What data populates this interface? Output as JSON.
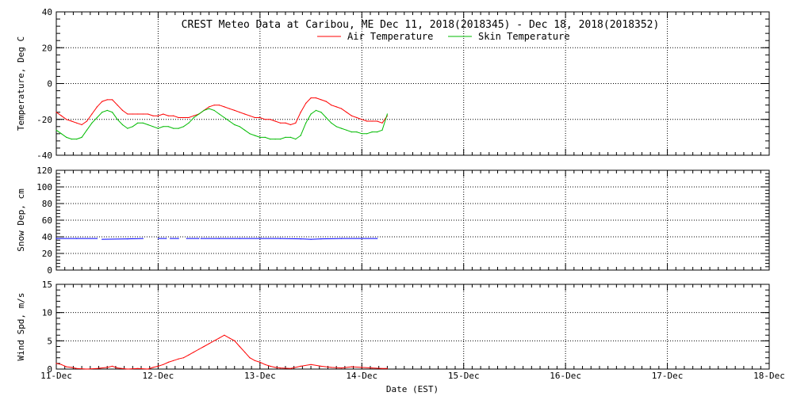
{
  "chart_data": {
    "type": "line",
    "title": "CREST Meteo Data at Caribou, ME   Dec 11, 2018(2018345) - Dec 18, 2018(2018352)",
    "x_label": "Date (EST)",
    "x_ticks": [
      "11-Dec",
      "12-Dec",
      "13-Dec",
      "14-Dec",
      "15-Dec",
      "16-Dec",
      "17-Dec",
      "18-Dec"
    ],
    "x_range": [
      0,
      7
    ],
    "x_unit": "days since 11-Dec",
    "panels": [
      {
        "name": "temperature",
        "ylabel": "Temperature, Deg C",
        "ylim": [
          -40,
          40
        ],
        "yticks": [
          -40,
          -20,
          0,
          20,
          40
        ],
        "series": [
          {
            "name": "Air Temperature",
            "color": "#ff0000",
            "x": [
              0,
              0.05,
              0.1,
              0.15,
              0.2,
              0.25,
              0.3,
              0.35,
              0.4,
              0.45,
              0.5,
              0.55,
              0.6,
              0.65,
              0.7,
              0.75,
              0.8,
              0.85,
              0.9,
              0.95,
              1,
              1.05,
              1.1,
              1.15,
              1.2,
              1.25,
              1.3,
              1.35,
              1.4,
              1.45,
              1.5,
              1.55,
              1.6,
              1.65,
              1.7,
              1.75,
              1.8,
              1.85,
              1.9,
              1.95,
              2,
              2.05,
              2.1,
              2.15,
              2.2,
              2.25,
              2.3,
              2.35,
              2.4,
              2.45,
              2.5,
              2.55,
              2.6,
              2.65,
              2.7,
              2.75,
              2.8,
              2.85,
              2.9,
              2.95,
              3,
              3.05,
              3.1,
              3.15,
              3.2,
              3.25
            ],
            "values": [
              -16,
              -18,
              -20,
              -21,
              -22,
              -23,
              -21,
              -17,
              -13,
              -10,
              -9,
              -9,
              -12,
              -15,
              -17,
              -17,
              -17,
              -17,
              -17,
              -18,
              -18,
              -17,
              -18,
              -18,
              -19,
              -19,
              -19,
              -18,
              -17,
              -15,
              -13,
              -12,
              -12,
              -13,
              -14,
              -15,
              -16,
              -17,
              -18,
              -19,
              -19,
              -20,
              -20,
              -21,
              -22,
              -22,
              -23,
              -22,
              -16,
              -11,
              -8,
              -8,
              -9,
              -10,
              -12,
              -13,
              -14,
              -16,
              -18,
              -19,
              -20,
              -21,
              -21,
              -21,
              -22,
              -18
            ]
          },
          {
            "name": "Skin Temperature",
            "color": "#00bb00",
            "x": [
              0,
              0.05,
              0.1,
              0.15,
              0.2,
              0.25,
              0.3,
              0.35,
              0.4,
              0.45,
              0.5,
              0.55,
              0.6,
              0.65,
              0.7,
              0.75,
              0.8,
              0.85,
              0.9,
              0.95,
              1,
              1.05,
              1.1,
              1.15,
              1.2,
              1.25,
              1.3,
              1.35,
              1.4,
              1.45,
              1.5,
              1.55,
              1.6,
              1.65,
              1.7,
              1.75,
              1.8,
              1.85,
              1.9,
              1.95,
              2,
              2.05,
              2.1,
              2.15,
              2.2,
              2.25,
              2.3,
              2.35,
              2.4,
              2.45,
              2.5,
              2.55,
              2.6,
              2.65,
              2.7,
              2.75,
              2.8,
              2.85,
              2.9,
              2.95,
              3,
              3.05,
              3.1,
              3.15,
              3.2,
              3.25
            ],
            "values": [
              -26,
              -28,
              -30,
              -31,
              -31,
              -30,
              -26,
              -22,
              -19,
              -16,
              -15,
              -16,
              -20,
              -23,
              -25,
              -24,
              -22,
              -22,
              -23,
              -24,
              -25,
              -24,
              -24,
              -25,
              -25,
              -24,
              -22,
              -19,
              -17,
              -15,
              -14,
              -15,
              -17,
              -19,
              -21,
              -23,
              -24,
              -26,
              -28,
              -29,
              -30,
              -30,
              -31,
              -31,
              -31,
              -30,
              -30,
              -31,
              -29,
              -22,
              -17,
              -15,
              -16,
              -19,
              -22,
              -24,
              -25,
              -26,
              -27,
              -27,
              -28,
              -28,
              -27,
              -27,
              -26,
              -17
            ]
          }
        ],
        "legend": {
          "placement": "top-center",
          "entries": [
            {
              "name": "Air Temperature",
              "color": "#ff0000"
            },
            {
              "name": "Skin Temperature",
              "color": "#00bb00"
            }
          ]
        }
      },
      {
        "name": "snow-depth",
        "ylabel": "Snow Dep, cm",
        "ylim": [
          0,
          120
        ],
        "yticks": [
          0,
          20,
          40,
          60,
          80,
          100,
          120
        ],
        "series": [
          {
            "name": "Snow Depth",
            "color": "#0000ff",
            "segments": [
              {
                "x": [
                  0,
                  0.2,
                  0.4
                ],
                "values": [
                  38,
                  38,
                  38
                ]
              },
              {
                "x": [
                  0.45,
                  0.7,
                  0.85
                ],
                "values": [
                  37,
                  37.5,
                  38
                ]
              },
              {
                "x": [
                  1.0,
                  1.08
                ],
                "values": [
                  38,
                  38
                ]
              },
              {
                "x": [
                  1.12,
                  1.2
                ],
                "values": [
                  38,
                  38
                ]
              },
              {
                "x": [
                  1.28,
                  1.4
                ],
                "values": [
                  38,
                  38
                ]
              },
              {
                "x": [
                  1.42,
                  1.6,
                  1.8,
                  2.0,
                  2.2,
                  2.4,
                  2.5,
                  2.6,
                  2.8,
                  3.0,
                  3.15
                ],
                "values": [
                  38,
                  38,
                  38,
                  38,
                  38,
                  37.5,
                  37,
                  37.5,
                  38,
                  38,
                  38
                ]
              }
            ]
          }
        ]
      },
      {
        "name": "wind-speed",
        "ylabel": "Wind Spd, m/s",
        "ylim": [
          0,
          15
        ],
        "yticks": [
          0,
          5,
          10,
          15
        ],
        "series": [
          {
            "name": "Wind Speed",
            "color": "#ff0000",
            "x": [
              0,
              0.05,
              0.1,
              0.15,
              0.2,
              0.3,
              0.4,
              0.5,
              0.55,
              0.6,
              0.7,
              0.8,
              0.9,
              0.95,
              1,
              1.05,
              1.1,
              1.15,
              1.2,
              1.25,
              1.3,
              1.35,
              1.4,
              1.45,
              1.5,
              1.55,
              1.6,
              1.65,
              1.7,
              1.75,
              1.8,
              1.85,
              1.9,
              1.95,
              2,
              2.05,
              2.1,
              2.15,
              2.2,
              2.3,
              2.4,
              2.5,
              2.6,
              2.7,
              2.8,
              2.9,
              3,
              3.1,
              3.2,
              3.25
            ],
            "values": [
              1.0,
              0.8,
              0.4,
              0.3,
              0.1,
              0,
              0.1,
              0.3,
              0.5,
              0.2,
              0,
              0.1,
              0,
              0.3,
              0.5,
              0.8,
              1.2,
              1.5,
              1.8,
              2.0,
              2.5,
              3.0,
              3.5,
              4.0,
              4.5,
              5.0,
              5.5,
              6.0,
              5.5,
              5.0,
              4.0,
              3.0,
              2.0,
              1.5,
              1.2,
              0.8,
              0.5,
              0.3,
              0.2,
              0.1,
              0.5,
              0.8,
              0.5,
              0.3,
              0.2,
              0.4,
              0.3,
              0.2,
              0.1,
              0.1
            ]
          }
        ]
      }
    ]
  }
}
